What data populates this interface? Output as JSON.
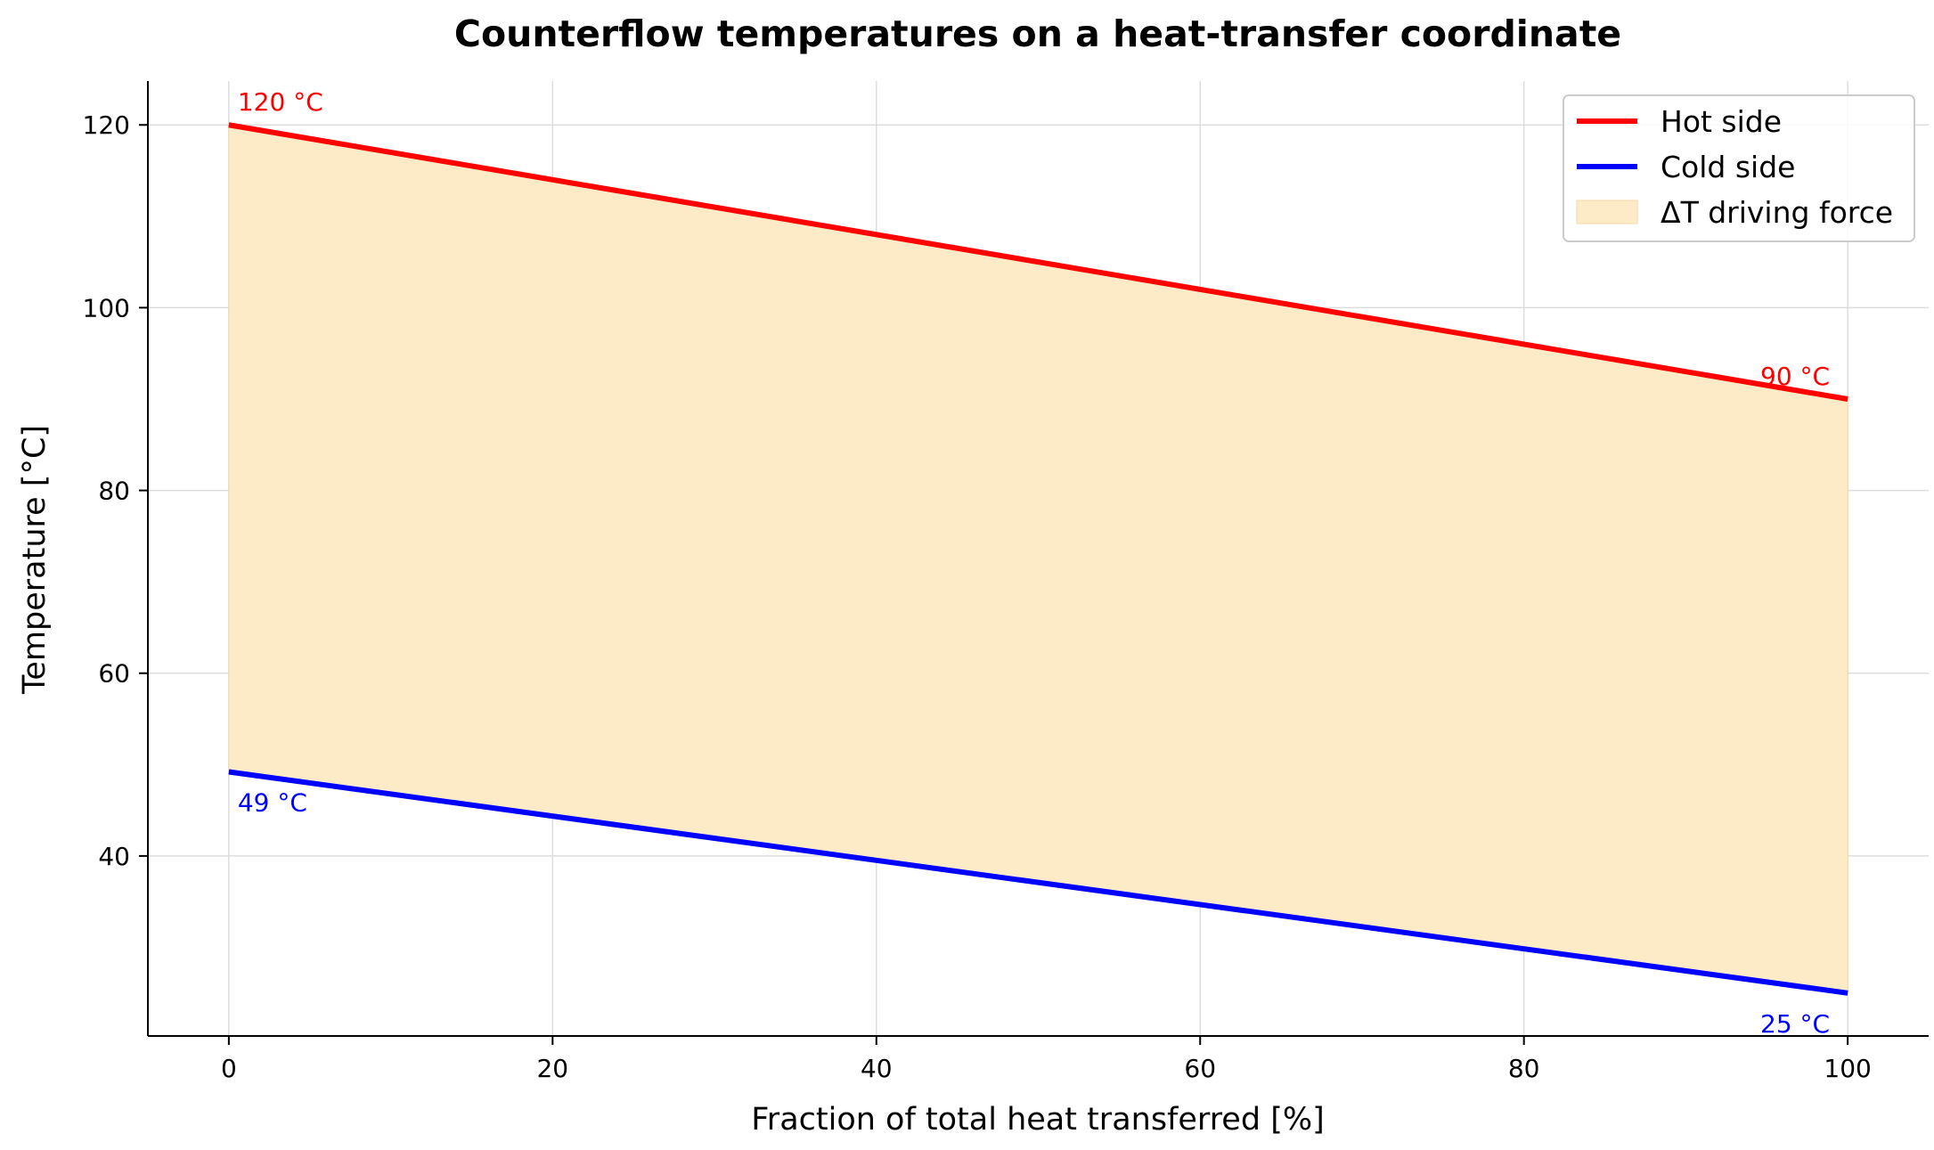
{
  "chart_data": {
    "type": "line",
    "title": "Counterflow temperatures on a heat-transfer coordinate",
    "xlabel": "Fraction of total heat transferred [%]",
    "ylabel": "Temperature [°C]",
    "xlim": [
      -5,
      105
    ],
    "ylim": [
      20.3,
      124.8
    ],
    "xticks": [
      0,
      20,
      40,
      60,
      80,
      100
    ],
    "yticks": [
      40,
      60,
      80,
      100,
      120
    ],
    "grid": true,
    "legend_position": "top-right",
    "x": [
      0,
      100
    ],
    "series": [
      {
        "name": "Hot side",
        "values": [
          120,
          90
        ],
        "color": "#ff0000"
      },
      {
        "name": "Cold side",
        "values": [
          49.2,
          25
        ],
        "color": "#0000ff"
      }
    ],
    "fill": {
      "name": "ΔT driving force",
      "between": [
        "Hot side",
        "Cold side"
      ],
      "color": "#fdebc8"
    },
    "annotations": [
      {
        "text": "120 °C",
        "x": 0,
        "y": 120,
        "color": "#ff0000",
        "placement": "above-right"
      },
      {
        "text": "90 °C",
        "x": 100,
        "y": 90,
        "color": "#ff0000",
        "placement": "above-left"
      },
      {
        "text": "49 °C",
        "x": 0,
        "y": 49.2,
        "color": "#0000ff",
        "placement": "below-right"
      },
      {
        "text": "25 °C",
        "x": 100,
        "y": 25,
        "color": "#0000ff",
        "placement": "below-left"
      }
    ]
  }
}
